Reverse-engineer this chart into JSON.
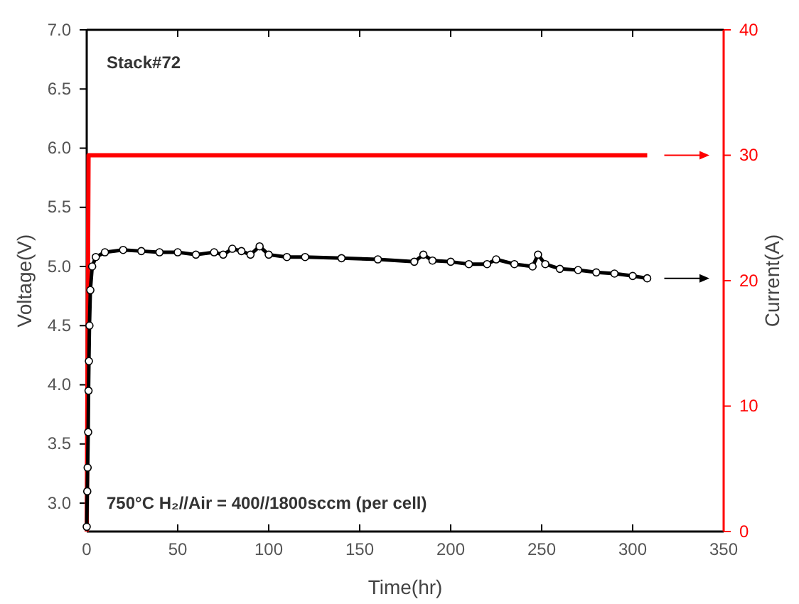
{
  "chart_data": {
    "type": "line",
    "xlabel": "Time(hr)",
    "ylabel": "Voltage(V)",
    "y2label": "Current(A)",
    "annotations": [
      "Stack#72",
      "750°C  H₂//Air = 400//1800sccm (per cell)"
    ],
    "xlim": [
      0,
      350
    ],
    "xticks": [
      0,
      50,
      100,
      150,
      200,
      250,
      300,
      350
    ],
    "ylim": [
      2.76,
      7.0
    ],
    "yticks": [
      {
        "value": 3,
        "label": "3.0"
      },
      3.5,
      {
        "value": 4,
        "label": "4.0"
      },
      4.5,
      {
        "value": 5,
        "label": "5.0"
      },
      5.5,
      {
        "value": 6,
        "label": "6.0"
      },
      6.5,
      {
        "value": 7,
        "label": "7.0"
      }
    ],
    "y2lim": [
      0,
      40
    ],
    "y2ticks": [
      0,
      10,
      20,
      30,
      40
    ],
    "grid": false,
    "series": [
      {
        "color": "#000000",
        "marker": "circle",
        "x": [
          0,
          0.3,
          0.5,
          0.8,
          1,
          1.2,
          1.5,
          2,
          3,
          5,
          10,
          20,
          30,
          40,
          50,
          60,
          70,
          75,
          80,
          85,
          90,
          95,
          100,
          110,
          120,
          140,
          160,
          180,
          185,
          190,
          200,
          210,
          220,
          225,
          235,
          245,
          248,
          252,
          260,
          270,
          280,
          290,
          300,
          308
        ],
        "values": [
          2.8,
          3.1,
          3.3,
          3.6,
          3.95,
          4.2,
          4.5,
          4.8,
          5.0,
          5.08,
          5.12,
          5.14,
          5.13,
          5.12,
          5.12,
          5.1,
          5.12,
          5.1,
          5.15,
          5.13,
          5.1,
          5.17,
          5.1,
          5.08,
          5.08,
          5.07,
          5.06,
          5.04,
          5.1,
          5.05,
          5.04,
          5.02,
          5.02,
          5.06,
          5.02,
          5.0,
          5.1,
          5.02,
          4.98,
          4.97,
          4.95,
          4.94,
          4.92,
          4.9
        ]
      },
      {
        "color": "#ff0000",
        "marker": "none",
        "axis": "y2",
        "x": [
          0,
          1,
          308
        ],
        "values": [
          0,
          30,
          30
        ]
      }
    ]
  }
}
